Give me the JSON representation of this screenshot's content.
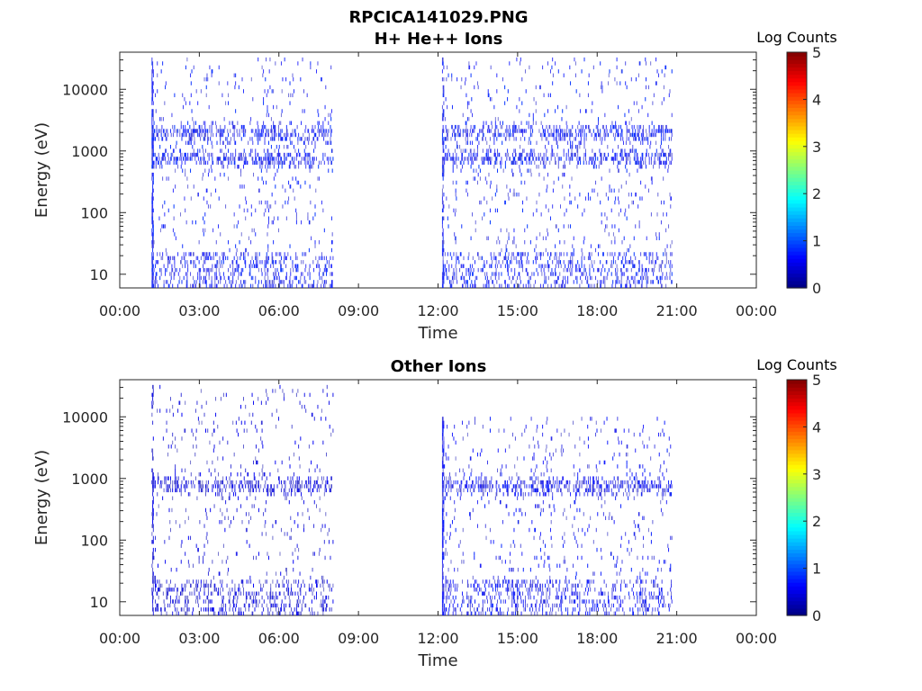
{
  "figure": {
    "title": "RPCICA141029.PNG",
    "background": "#ffffff"
  },
  "chart_data": [
    {
      "type": "heatmap",
      "title": "H+ He++ Ions",
      "xlabel": "Time",
      "ylabel": "Energy (eV)",
      "xticks": [
        "00:00",
        "03:00",
        "06:00",
        "09:00",
        "12:00",
        "15:00",
        "18:00",
        "21:00",
        "00:00"
      ],
      "xlim_hours": [
        0,
        24
      ],
      "ylim": [
        6,
        40000
      ],
      "yscale": "log",
      "yticks": [
        10,
        100,
        1000,
        10000
      ],
      "ytick_labels": [
        "10",
        "100",
        "1000",
        "10000"
      ],
      "colorbar": {
        "label": "Log Counts",
        "range": [
          0,
          5
        ],
        "ticks": [
          "0",
          "1",
          "2",
          "3",
          "4",
          "5"
        ],
        "colormap": "jet"
      },
      "data_intervals_hours": [
        [
          1.2,
          8.05
        ],
        [
          12.15,
          20.8
        ]
      ],
      "intervals": [
        {
          "start_h": 1.2,
          "end_h": 8.05,
          "max_energy_ev": 30000,
          "max_log_counts": 0.9,
          "spike_at_start": true,
          "peak_bands_ev": [
            700,
            1800
          ]
        },
        {
          "start_h": 12.15,
          "end_h": 20.8,
          "max_energy_ev": 30000,
          "max_log_counts": 0.9,
          "spike_at_start": true,
          "peak_bands_ev": [
            700,
            1800
          ]
        }
      ]
    },
    {
      "type": "heatmap",
      "title": "Other Ions",
      "xlabel": "Time",
      "ylabel": "Energy (eV)",
      "xticks": [
        "00:00",
        "03:00",
        "06:00",
        "09:00",
        "12:00",
        "15:00",
        "18:00",
        "21:00",
        "00:00"
      ],
      "xlim_hours": [
        0,
        24
      ],
      "ylim": [
        6,
        40000
      ],
      "yscale": "log",
      "yticks": [
        10,
        100,
        1000,
        10000
      ],
      "ytick_labels": [
        "10",
        "100",
        "1000",
        "10000"
      ],
      "colorbar": {
        "label": "Log Counts",
        "range": [
          0,
          5
        ],
        "ticks": [
          "0",
          "1",
          "2",
          "3",
          "4",
          "5"
        ],
        "colormap": "jet"
      },
      "data_intervals_hours": [
        [
          1.2,
          8.05
        ],
        [
          12.15,
          20.8
        ]
      ],
      "intervals": [
        {
          "start_h": 1.2,
          "end_h": 8.05,
          "max_energy_ev": 30000,
          "max_log_counts": 0.6,
          "spike_at_start": true,
          "peak_bands_ev": [
            700
          ]
        },
        {
          "start_h": 12.15,
          "end_h": 20.8,
          "max_energy_ev": 10000,
          "max_log_counts": 0.8,
          "spike_at_start": true,
          "peak_bands_ev": [
            700
          ]
        }
      ]
    }
  ]
}
